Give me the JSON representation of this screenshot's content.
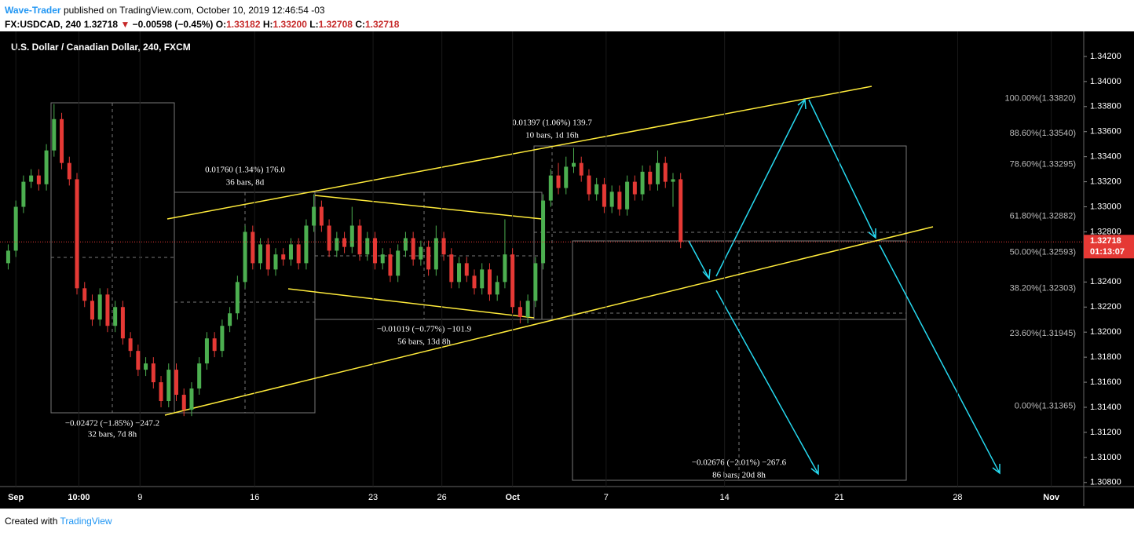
{
  "header": {
    "author": "Wave-Trader",
    "published": "published on TradingView.com, October 10, 2019 12:46:54 -03",
    "symbol": "FX:USDCAD, 240",
    "last": "1.32718",
    "arrow": "▼",
    "change": "−0.00598 (−0.45%)",
    "o_key": "O:",
    "o": "1.33182",
    "h_key": "H:",
    "h": "1.33200",
    "l_key": "L:",
    "l": "1.32708",
    "c_key": "C:",
    "c": "1.32718"
  },
  "footer": {
    "created": "Created with",
    "brand": "TradingView"
  },
  "annotations": [
    [
      "0.01760 (1.34%) 176.0",
      "36 bars, 8d"
    ],
    [
      "0.01397 (1.06%) 139.7",
      "10 bars, 1d 16h"
    ],
    [
      "−0.01019 (−0.77%) −101.9",
      "56 bars, 13d 8h"
    ],
    [
      "−0.02472 (−1.85%) −247.2",
      "32 bars, 7d 8h"
    ],
    [
      "−0.02676 (−2.01%) −267.6",
      "86 bars, 20d 8h"
    ]
  ],
  "chart_data": {
    "type": "candlestick",
    "title": "U.S. Dollar / Canadian Dollar, 240, FXCM",
    "price_label": "1.32718",
    "countdown": "01:13:07",
    "up_color": "#4caf50",
    "down_color": "#e53935",
    "xlim": [
      0,
      282
    ],
    "ylim": [
      1.3078,
      1.344
    ],
    "xticks": [
      {
        "value": 2.5,
        "label": "Sep"
      },
      {
        "value": 19,
        "label": "10:00"
      },
      {
        "value": 35,
        "label": "9"
      },
      {
        "value": 65,
        "label": "16"
      },
      {
        "value": 96,
        "label": "23"
      },
      {
        "value": 114,
        "label": "26"
      },
      {
        "value": 132.5,
        "label": "Oct"
      },
      {
        "value": 157,
        "label": "7"
      },
      {
        "value": 188,
        "label": "14"
      },
      {
        "value": 218,
        "label": "21"
      },
      {
        "value": 249,
        "label": "28"
      },
      {
        "value": 273.5,
        "label": "Nov"
      }
    ],
    "yticks": [
      {
        "value": 1.342,
        "label": "1.34200"
      },
      {
        "value": 1.34,
        "label": "1.34000"
      },
      {
        "value": 1.338,
        "label": "1.33800"
      },
      {
        "value": 1.336,
        "label": "1.33600"
      },
      {
        "value": 1.334,
        "label": "1.33400"
      },
      {
        "value": 1.332,
        "label": "1.33200"
      },
      {
        "value": 1.33,
        "label": "1.33000"
      },
      {
        "value": 1.328,
        "label": "1.32800"
      },
      {
        "value": 1.324,
        "label": "1.32400"
      },
      {
        "value": 1.322,
        "label": "1.32200"
      },
      {
        "value": 1.32,
        "label": "1.32000"
      },
      {
        "value": 1.318,
        "label": "1.31800"
      },
      {
        "value": 1.316,
        "label": "1.31600"
      },
      {
        "value": 1.314,
        "label": "1.31400"
      },
      {
        "value": 1.312,
        "label": "1.31200"
      },
      {
        "value": 1.31,
        "label": "1.31000"
      },
      {
        "value": 1.308,
        "label": "1.30800"
      }
    ],
    "fib": [
      {
        "label": "100.00%(1.33820)",
        "price": 1.3382
      },
      {
        "label": "88.60%(1.33540)",
        "price": 1.3354
      },
      {
        "label": "78.60%(1.33295)",
        "price": 1.33295
      },
      {
        "label": "61.80%(1.32882)",
        "price": 1.32882
      },
      {
        "label": "50.00%(1.32593)",
        "price": 1.32593
      },
      {
        "label": "38.20%(1.32303)",
        "price": 1.32303
      },
      {
        "label": "23.60%(1.31945)",
        "price": 1.31945
      },
      {
        "label": "0.00%(1.31365)",
        "price": 1.31365
      }
    ],
    "candles": [
      [
        1.3255,
        1.327,
        1.325,
        1.3265
      ],
      [
        1.3265,
        1.3305,
        1.326,
        1.33
      ],
      [
        1.33,
        1.3325,
        1.3295,
        1.332
      ],
      [
        1.332,
        1.333,
        1.3315,
        1.3325
      ],
      [
        1.3325,
        1.333,
        1.3313,
        1.3318
      ],
      [
        1.3318,
        1.335,
        1.3313,
        1.3345
      ],
      [
        1.3345,
        1.3382,
        1.334,
        1.337
      ],
      [
        1.337,
        1.3375,
        1.333,
        1.3335
      ],
      [
        1.3335,
        1.334,
        1.3317,
        1.3322
      ],
      [
        1.3322,
        1.3327,
        1.323,
        1.3235
      ],
      [
        1.3235,
        1.324,
        1.322,
        1.3225
      ],
      [
        1.3225,
        1.323,
        1.3205,
        1.321
      ],
      [
        1.321,
        1.3235,
        1.3205,
        1.323
      ],
      [
        1.323,
        1.3235,
        1.32,
        1.3205
      ],
      [
        1.3205,
        1.3225,
        1.32,
        1.322
      ],
      [
        1.322,
        1.3225,
        1.319,
        1.3195
      ],
      [
        1.3195,
        1.32,
        1.318,
        1.3185
      ],
      [
        1.3185,
        1.319,
        1.3165,
        1.317
      ],
      [
        1.317,
        1.318,
        1.3165,
        1.3175
      ],
      [
        1.3175,
        1.318,
        1.3155,
        1.316
      ],
      [
        1.316,
        1.3165,
        1.314,
        1.3145
      ],
      [
        1.3145,
        1.3175,
        1.314,
        1.317
      ],
      [
        1.317,
        1.3175,
        1.3145,
        1.315
      ],
      [
        1.315,
        1.3155,
        1.3133,
        1.3138
      ],
      [
        1.3138,
        1.316,
        1.3133,
        1.3155
      ],
      [
        1.3155,
        1.318,
        1.315,
        1.3175
      ],
      [
        1.3175,
        1.32,
        1.317,
        1.3195
      ],
      [
        1.3195,
        1.32,
        1.318,
        1.3185
      ],
      [
        1.3185,
        1.321,
        1.318,
        1.3205
      ],
      [
        1.3205,
        1.322,
        1.32,
        1.3215
      ],
      [
        1.3215,
        1.3245,
        1.321,
        1.324
      ],
      [
        1.324,
        1.3285,
        1.3235,
        1.328
      ],
      [
        1.328,
        1.3285,
        1.325,
        1.3255
      ],
      [
        1.3255,
        1.3275,
        1.325,
        1.327
      ],
      [
        1.327,
        1.3275,
        1.3245,
        1.325
      ],
      [
        1.325,
        1.3267,
        1.3245,
        1.3262
      ],
      [
        1.3262,
        1.3267,
        1.3253,
        1.3258
      ],
      [
        1.3258,
        1.3275,
        1.3253,
        1.327
      ],
      [
        1.327,
        1.3275,
        1.325,
        1.3255
      ],
      [
        1.3255,
        1.329,
        1.325,
        1.3285
      ],
      [
        1.3285,
        1.331,
        1.328,
        1.33
      ],
      [
        1.33,
        1.3305,
        1.328,
        1.3285
      ],
      [
        1.3285,
        1.329,
        1.326,
        1.3265
      ],
      [
        1.3265,
        1.328,
        1.326,
        1.3275
      ],
      [
        1.3275,
        1.328,
        1.3263,
        1.3268
      ],
      [
        1.3268,
        1.33,
        1.3263,
        1.3285
      ],
      [
        1.3285,
        1.329,
        1.3257,
        1.3262
      ],
      [
        1.3262,
        1.328,
        1.3257,
        1.3275
      ],
      [
        1.3275,
        1.328,
        1.325,
        1.3255
      ],
      [
        1.3255,
        1.3267,
        1.325,
        1.3262
      ],
      [
        1.3262,
        1.3267,
        1.324,
        1.3245
      ],
      [
        1.3245,
        1.327,
        1.324,
        1.3265
      ],
      [
        1.3265,
        1.328,
        1.326,
        1.3275
      ],
      [
        1.3275,
        1.328,
        1.3253,
        1.3258
      ],
      [
        1.3258,
        1.3273,
        1.3253,
        1.3268
      ],
      [
        1.3268,
        1.3273,
        1.3245,
        1.325
      ],
      [
        1.325,
        1.3285,
        1.3245,
        1.3275
      ],
      [
        1.3275,
        1.328,
        1.3257,
        1.3262
      ],
      [
        1.3262,
        1.3267,
        1.3235,
        1.324
      ],
      [
        1.324,
        1.326,
        1.3235,
        1.3255
      ],
      [
        1.3255,
        1.326,
        1.324,
        1.3245
      ],
      [
        1.3245,
        1.325,
        1.323,
        1.3235
      ],
      [
        1.3235,
        1.3255,
        1.323,
        1.325
      ],
      [
        1.325,
        1.3255,
        1.3225,
        1.323
      ],
      [
        1.323,
        1.3245,
        1.3225,
        1.324
      ],
      [
        1.324,
        1.329,
        1.3235,
        1.3262
      ],
      [
        1.3262,
        1.3267,
        1.3215,
        1.322
      ],
      [
        1.322,
        1.3225,
        1.3207,
        1.3212
      ],
      [
        1.3212,
        1.323,
        1.3207,
        1.3225
      ],
      [
        1.3225,
        1.326,
        1.322,
        1.3255
      ],
      [
        1.3255,
        1.331,
        1.325,
        1.3305
      ],
      [
        1.3305,
        1.333,
        1.33,
        1.3325
      ],
      [
        1.3325,
        1.3335,
        1.331,
        1.3315
      ],
      [
        1.3315,
        1.334,
        1.331,
        1.3332
      ],
      [
        1.3332,
        1.3347,
        1.3327,
        1.3335
      ],
      [
        1.3335,
        1.334,
        1.332,
        1.3325
      ],
      [
        1.3325,
        1.333,
        1.3305,
        1.331
      ],
      [
        1.331,
        1.3323,
        1.3305,
        1.3318
      ],
      [
        1.3318,
        1.3323,
        1.3295,
        1.33
      ],
      [
        1.33,
        1.3317,
        1.3295,
        1.3312
      ],
      [
        1.3312,
        1.3317,
        1.3293,
        1.3298
      ],
      [
        1.3298,
        1.3325,
        1.3293,
        1.332
      ],
      [
        1.332,
        1.3325,
        1.3305,
        1.331
      ],
      [
        1.331,
        1.3333,
        1.3305,
        1.3328
      ],
      [
        1.3328,
        1.3333,
        1.3313,
        1.3318
      ],
      [
        1.3318,
        1.3345,
        1.3313,
        1.3335
      ],
      [
        1.3335,
        1.334,
        1.3315,
        1.332
      ],
      [
        1.332,
        1.3327,
        1.33,
        1.3322
      ],
      [
        1.3322,
        1.3327,
        1.3267,
        1.3272
      ]
    ]
  }
}
